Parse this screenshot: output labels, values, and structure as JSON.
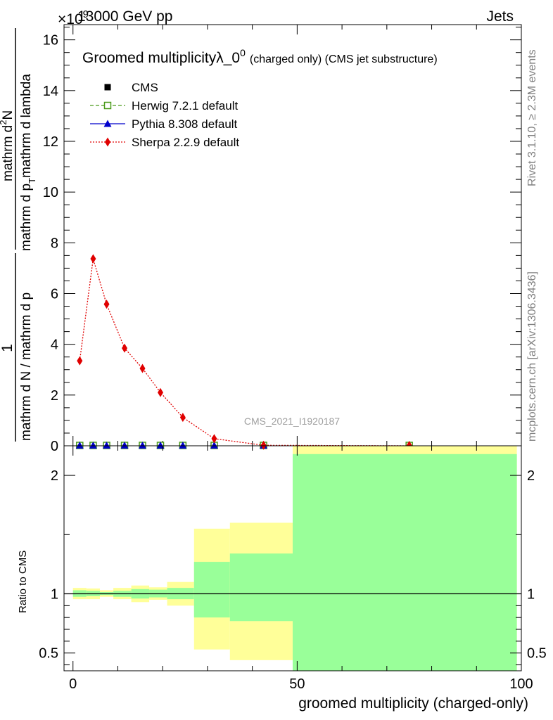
{
  "header": {
    "energy_label": "13000 GeV pp",
    "process_label": "Jets",
    "exponent_label": "×10"
  },
  "side_labels": {
    "rivet": "Rivet 3.1.10, ≥ 2.3M events",
    "mcplots": "mcplots.cern.ch [arXiv:1306.3436]"
  },
  "watermark": "CMS_2021_I1920187",
  "colors": {
    "cms": "#000000",
    "herwig": "#4a9a1a",
    "pythia": "#0000cc",
    "sherpa": "#e00000",
    "band_inner": "#99ff99",
    "band_outer": "#ffff99"
  },
  "legend": [
    {
      "key": "cms",
      "label": "CMS",
      "marker": "square-filled"
    },
    {
      "key": "herwig",
      "label": "Herwig 7.2.1 default",
      "marker": "square-open"
    },
    {
      "key": "pythia",
      "label": "Pythia 8.308 default",
      "marker": "triangle"
    },
    {
      "key": "sherpa",
      "label": "Sherpa 2.2.9 default",
      "marker": "diamond"
    }
  ],
  "chart_data": [
    {
      "type": "line",
      "panel": "main",
      "title": "Groomed multiplicity",
      "title_symbol": "λ_0",
      "title_sup": "0",
      "subtitle": "(charged only) (CMS jet substructure)",
      "ylabel_fraction": {
        "numerator_left": "1",
        "denominator_left": "mathrm d N / mathrm d p",
        "numerator_right": "mathrm d",
        "numerator_right_sup": "2",
        "numerator_right_end": "N",
        "denominator_right": "mathrm d p",
        "denominator_right_sub": "T",
        "denominator_right_end": "mathrm d lambda"
      },
      "xlim": [
        -2,
        100
      ],
      "ylim": [
        0,
        16.6
      ],
      "y_scale_exponent": 9,
      "yticks": [
        0,
        2,
        4,
        6,
        8,
        10,
        12,
        14,
        16
      ],
      "series": [
        {
          "name": "CMS",
          "x": [
            1.5,
            4.5,
            7.5,
            11.5,
            15.5,
            19.5,
            24.5,
            31.5,
            42.5,
            75
          ],
          "y": [
            0,
            0,
            0,
            0,
            0,
            0,
            0,
            0,
            0,
            0
          ]
        },
        {
          "name": "Herwig 7.2.1 default",
          "x": [
            1.5,
            4.5,
            7.5,
            11.5,
            15.5,
            19.5,
            24.5,
            31.5,
            42.5,
            75
          ],
          "y": [
            0,
            0,
            0,
            0,
            0,
            0,
            0,
            0,
            0,
            0
          ]
        },
        {
          "name": "Pythia 8.308 default",
          "x": [
            1.5,
            4.5,
            7.5,
            11.5,
            15.5,
            19.5,
            24.5,
            31.5,
            42.5,
            75
          ],
          "y": [
            0,
            0,
            0,
            0,
            0,
            0,
            0,
            0,
            0,
            0
          ]
        },
        {
          "name": "Sherpa 2.2.9 default",
          "x": [
            1.5,
            4.5,
            7.5,
            11.5,
            15.5,
            19.5,
            24.5,
            31.5,
            42.5,
            75
          ],
          "y": [
            3.35,
            7.37,
            5.58,
            3.85,
            3.05,
            2.1,
            1.12,
            0.28,
            0.02,
            0
          ]
        }
      ]
    },
    {
      "type": "area",
      "panel": "ratio",
      "ylabel": "Ratio to CMS",
      "xlabel": "groomed multiplicity (charged-only)",
      "xlim": [
        -2,
        100
      ],
      "ylim": [
        0.35,
        2.25
      ],
      "xticks": [
        0,
        50,
        100
      ],
      "yticks": [
        0.5,
        1,
        2
      ],
      "reference_line": 1,
      "bins": [
        {
          "lo": 0,
          "hi": 3,
          "inner": [
            0.975,
            1.03
          ],
          "outer": [
            0.955,
            1.05
          ]
        },
        {
          "lo": 3,
          "hi": 6,
          "inner": [
            0.98,
            1.025
          ],
          "outer": [
            0.955,
            1.045
          ]
        },
        {
          "lo": 6,
          "hi": 9,
          "inner": [
            0.99,
            1.015
          ],
          "outer": [
            0.975,
            1.03
          ]
        },
        {
          "lo": 9,
          "hi": 13,
          "inner": [
            0.975,
            1.025
          ],
          "outer": [
            0.955,
            1.05
          ]
        },
        {
          "lo": 13,
          "hi": 17,
          "inner": [
            0.96,
            1.04
          ],
          "outer": [
            0.93,
            1.07
          ]
        },
        {
          "lo": 17,
          "hi": 21,
          "inner": [
            0.97,
            1.035
          ],
          "outer": [
            0.95,
            1.055
          ]
        },
        {
          "lo": 21,
          "hi": 27,
          "inner": [
            0.955,
            1.05
          ],
          "outer": [
            0.9,
            1.1
          ]
        },
        {
          "lo": 27,
          "hi": 35,
          "inner": [
            0.8,
            1.27
          ],
          "outer": [
            0.53,
            1.55
          ]
        },
        {
          "lo": 35,
          "hi": 49,
          "inner": [
            0.77,
            1.34
          ],
          "outer": [
            0.44,
            1.6
          ]
        },
        {
          "lo": 49,
          "hi": 99,
          "inner": [
            0.35,
            2.18
          ],
          "outer": [
            0.35,
            2.25
          ]
        }
      ]
    }
  ]
}
